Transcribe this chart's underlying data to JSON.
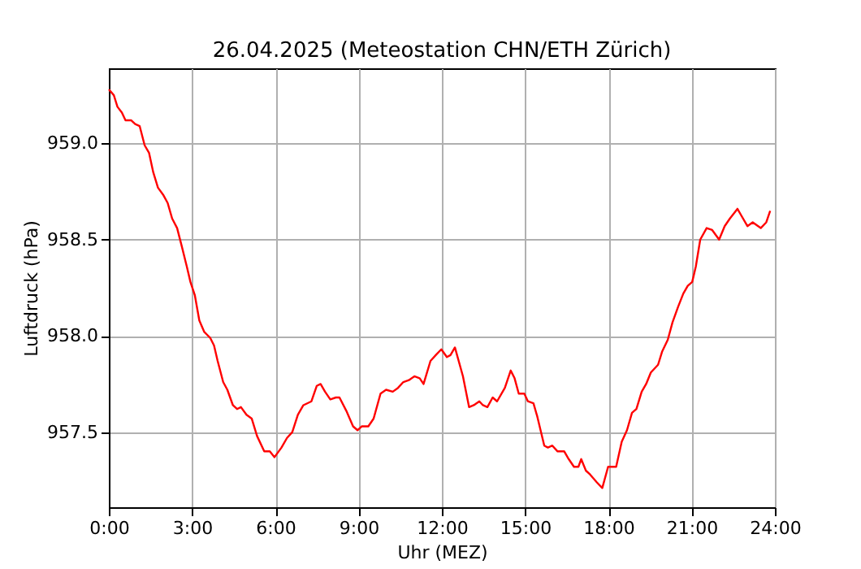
{
  "chart_data": {
    "type": "line",
    "title": "26.04.2025  (Meteostation CHN/ETH Zürich)",
    "xlabel": "Uhr (MEZ)",
    "ylabel": "Luftdruck (hPa)",
    "x": [
      0,
      0.18,
      0.31,
      0.47,
      0.6,
      0.8,
      0.95,
      1.11,
      1.29,
      1.45,
      1.6,
      1.77,
      1.97,
      2.12,
      2.28,
      2.46,
      2.62,
      2.81,
      2.94,
      3.1,
      3.26,
      3.44,
      3.65,
      3.79,
      3.92,
      4.12,
      4.27,
      4.47,
      4.62,
      4.76,
      4.96,
      5.15,
      5.34,
      5.6,
      5.8,
      5.97,
      6.22,
      6.42,
      6.61,
      6.81,
      7.01,
      7.3,
      7.49,
      7.63,
      7.79,
      7.98,
      8.18,
      8.31,
      8.56,
      8.8,
      8.96,
      9.11,
      9.35,
      9.54,
      9.79,
      9.99,
      10.23,
      10.42,
      10.61,
      10.81,
      11.01,
      11.2,
      11.34,
      11.59,
      11.78,
      11.98,
      12.18,
      12.31,
      12.47,
      12.76,
      12.98,
      13.15,
      13.35,
      13.48,
      13.64,
      13.83,
      13.99,
      14.27,
      14.48,
      14.62,
      14.77,
      14.97,
      15.1,
      15.3,
      15.44,
      15.69,
      15.82,
      15.98,
      16.17,
      16.41,
      16.57,
      16.76,
      16.92,
      17.02,
      17.19,
      17.34,
      17.58,
      17.78,
      17.99,
      18.28,
      18.48,
      18.67,
      18.85,
      19.01,
      19.2,
      19.36,
      19.53,
      19.79,
      19.94,
      20.14,
      20.31,
      20.51,
      20.7,
      20.86,
      21.02,
      21.15,
      21.31,
      21.54,
      21.74,
      21.99,
      22.19,
      22.38,
      22.65,
      22.77,
      23.01,
      23.2,
      23.49,
      23.69,
      23.83
    ],
    "series": [
      {
        "color": "#ff0000",
        "values": [
          959.28,
          959.25,
          959.19,
          959.16,
          959.12,
          959.12,
          959.1,
          959.09,
          958.99,
          958.95,
          958.85,
          958.77,
          958.73,
          958.69,
          958.61,
          958.56,
          958.47,
          958.36,
          958.28,
          958.21,
          958.08,
          958.02,
          957.99,
          957.95,
          957.87,
          957.76,
          957.72,
          957.64,
          957.62,
          957.63,
          957.59,
          957.57,
          957.48,
          957.4,
          957.4,
          957.37,
          957.42,
          957.47,
          957.5,
          957.59,
          957.64,
          957.66,
          957.74,
          957.75,
          957.71,
          957.67,
          957.68,
          957.68,
          957.61,
          957.53,
          957.51,
          957.53,
          957.53,
          957.57,
          957.7,
          957.72,
          957.71,
          957.73,
          957.76,
          957.77,
          957.79,
          957.78,
          957.75,
          957.87,
          957.9,
          957.93,
          957.89,
          957.9,
          957.94,
          957.79,
          957.63,
          957.64,
          957.66,
          957.64,
          957.63,
          957.68,
          957.66,
          957.73,
          957.82,
          957.78,
          957.7,
          957.7,
          957.66,
          957.65,
          957.58,
          957.43,
          957.42,
          957.43,
          957.4,
          957.4,
          957.36,
          957.32,
          957.32,
          957.36,
          957.3,
          957.28,
          957.24,
          957.21,
          957.32,
          957.32,
          957.45,
          957.51,
          957.6,
          957.62,
          957.71,
          957.75,
          957.81,
          957.85,
          957.92,
          957.98,
          958.07,
          958.15,
          958.22,
          958.26,
          958.28,
          958.36,
          958.5,
          958.56,
          958.55,
          958.5,
          958.57,
          958.61,
          958.66,
          958.63,
          958.57,
          958.59,
          958.56,
          958.59,
          958.65
        ]
      }
    ],
    "xlim": [
      0,
      24
    ],
    "xticks": [
      {
        "value": 0,
        "label": "0:00"
      },
      {
        "value": 3,
        "label": "3:00"
      },
      {
        "value": 6,
        "label": "6:00"
      },
      {
        "value": 9,
        "label": "9:00"
      },
      {
        "value": 12,
        "label": "12:00"
      },
      {
        "value": 15,
        "label": "15:00"
      },
      {
        "value": 18,
        "label": "18:00"
      },
      {
        "value": 21,
        "label": "21:00"
      },
      {
        "value": 24,
        "label": "24:00"
      }
    ],
    "ylim": [
      957.11,
      959.39
    ],
    "yticks": [
      {
        "value": 957.5,
        "label": "957.5"
      },
      {
        "value": 958.0,
        "label": "958.0"
      },
      {
        "value": 958.5,
        "label": "958.5"
      },
      {
        "value": 959.0,
        "label": "959.0"
      }
    ],
    "grid": true,
    "legend": false,
    "line_style": "solid",
    "marker": "none"
  }
}
